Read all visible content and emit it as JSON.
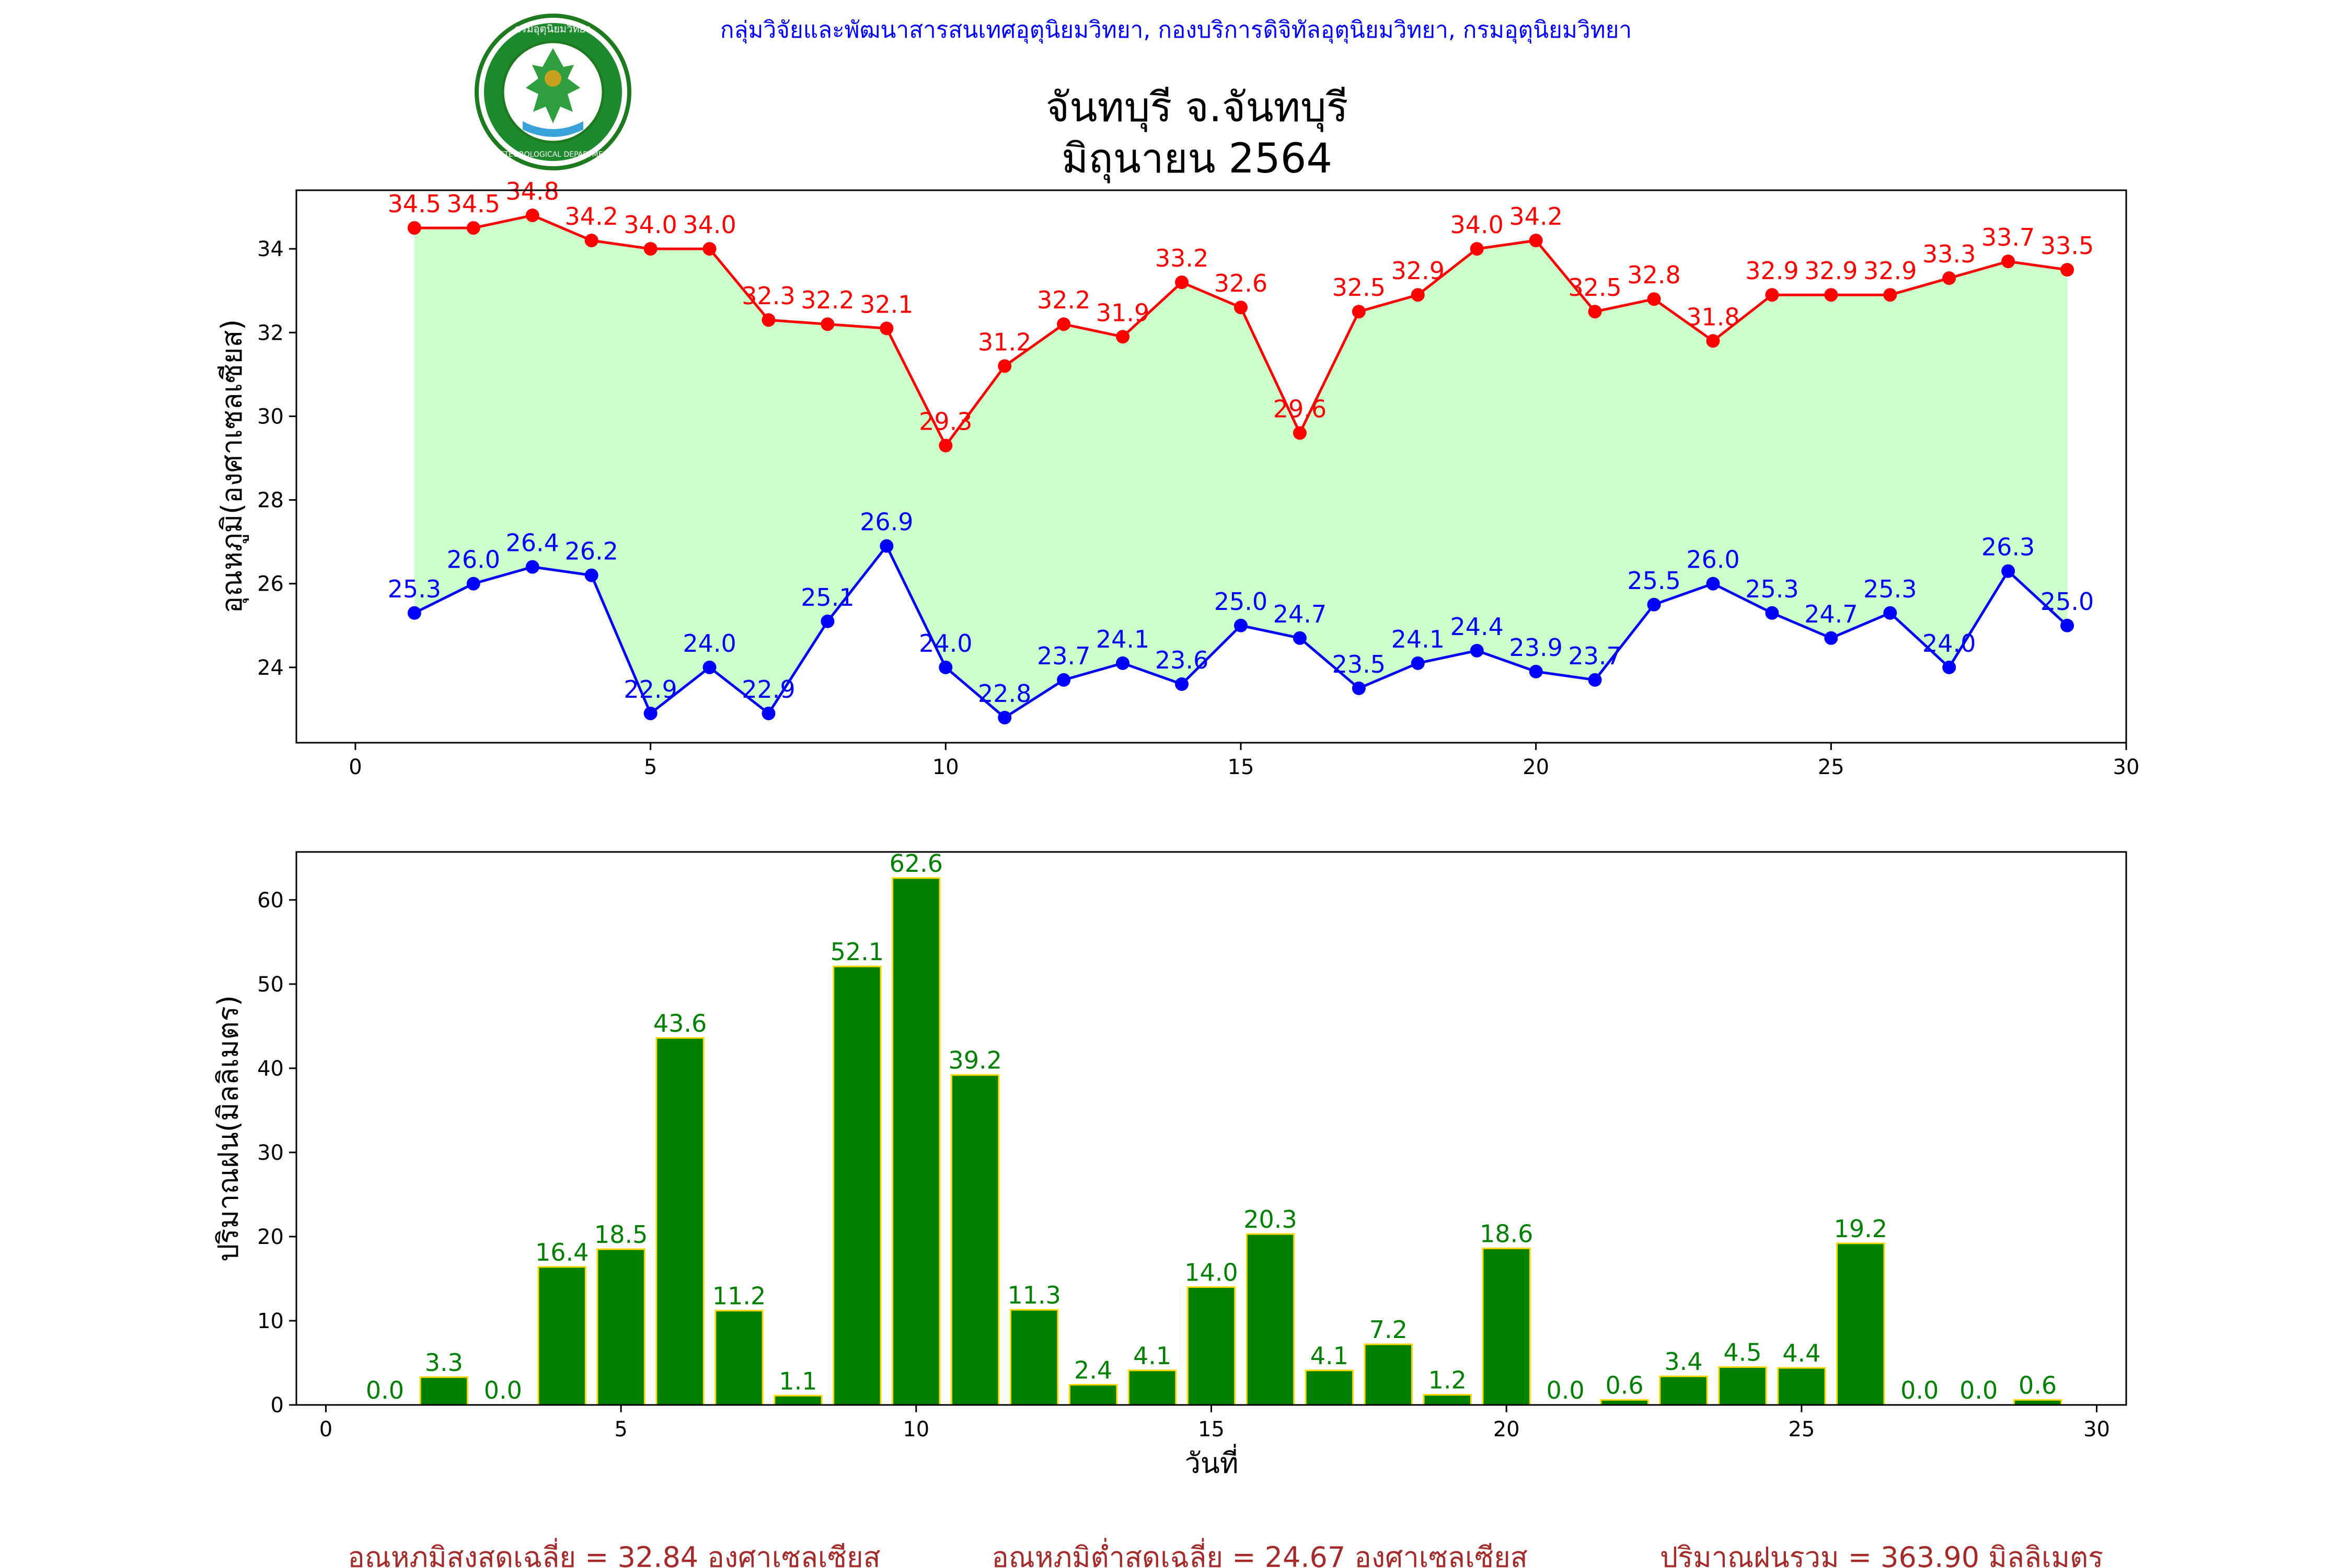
{
  "header": {
    "agency": "กลุ่มวิจัยและพัฒนาสารสนเทศอุตุนิยมวิทยา, กองบริการดิจิทัลอุตุนิยมวิทยา, กรมอุตุนิยมวิทยา",
    "station": "จันทบุรี จ.จันทบุรี",
    "period": "มิถุนายน 2564",
    "logo": {
      "text_top": "กรมอุตุนิยมวิทยา",
      "text_bottom": "METEOROLOGICAL DEPARTMENT"
    }
  },
  "colors": {
    "max_line": "#ff0000",
    "min_line": "#0000ff",
    "fill": "#ccffcc",
    "bar": "#008000",
    "bar_edge": "#ffd700",
    "bar_label": "#008000",
    "agency_text": "#0000ff",
    "summary_text": "#a52a2a"
  },
  "chart_data": [
    {
      "type": "line",
      "ylabel": "อุณหภูมิ(องศาเซลเซียส)",
      "xlabel": "",
      "xlim": [
        -1,
        30
      ],
      "ylim": [
        22.2,
        35.4
      ],
      "xticks": [
        0,
        5,
        10,
        15,
        20,
        25,
        30
      ],
      "yticks": [
        24,
        26,
        28,
        30,
        32,
        34
      ],
      "fill_between": true,
      "x": [
        1,
        2,
        3,
        4,
        5,
        6,
        7,
        8,
        9,
        10,
        11,
        12,
        13,
        14,
        15,
        16,
        17,
        18,
        19,
        20,
        21,
        22,
        23,
        24,
        25,
        26,
        27,
        28,
        29
      ],
      "series": [
        {
          "key": "max",
          "values": [
            34.5,
            34.5,
            34.8,
            34.2,
            34.0,
            34.0,
            32.3,
            32.2,
            32.1,
            29.3,
            31.2,
            32.2,
            31.9,
            33.2,
            32.6,
            29.6,
            32.5,
            32.9,
            34.0,
            34.2,
            32.5,
            32.8,
            31.8,
            32.9,
            32.9,
            32.9,
            33.3,
            33.7,
            33.5
          ]
        },
        {
          "key": "min",
          "values": [
            25.3,
            26.0,
            26.4,
            26.2,
            22.9,
            24.0,
            22.9,
            25.1,
            26.9,
            24.0,
            22.8,
            23.7,
            24.1,
            23.6,
            25.0,
            24.7,
            23.5,
            24.1,
            24.4,
            23.9,
            23.7,
            25.5,
            26.0,
            25.3,
            24.7,
            25.3,
            24.0,
            26.3,
            25.0
          ]
        }
      ]
    },
    {
      "type": "bar",
      "ylabel": "ปริมาณฝน(มิลลิเมตร)",
      "xlabel": "วันที่",
      "xlim": [
        -0.5,
        30.5
      ],
      "ylim": [
        0,
        65.7
      ],
      "xticks": [
        0,
        5,
        10,
        15,
        20,
        25,
        30
      ],
      "yticks": [
        0,
        10,
        20,
        30,
        40,
        50,
        60
      ],
      "x": [
        1,
        2,
        3,
        4,
        5,
        6,
        7,
        8,
        9,
        10,
        11,
        12,
        13,
        14,
        15,
        16,
        17,
        18,
        19,
        20,
        21,
        22,
        23,
        24,
        25,
        26,
        27,
        28,
        29
      ],
      "values": [
        0.0,
        3.3,
        0.0,
        16.4,
        18.5,
        43.6,
        11.2,
        1.1,
        52.1,
        62.6,
        39.2,
        11.3,
        2.4,
        4.1,
        14.0,
        20.3,
        4.1,
        7.2,
        1.2,
        18.6,
        0.0,
        0.6,
        3.4,
        4.5,
        4.4,
        19.2,
        0.0,
        0.0,
        0.6
      ]
    }
  ],
  "summary": {
    "avg_max": "อุณหภูมิสูงสุดเฉลี่ย = 32.84 องศาเซลเซียส",
    "avg_min": "อุณหภูมิต่ำสุดเฉลี่ย = 24.67 องศาเซลเซียส",
    "total_rain": "ปริมาณฝนรวม = 363.90 มิลลิเมตร"
  }
}
